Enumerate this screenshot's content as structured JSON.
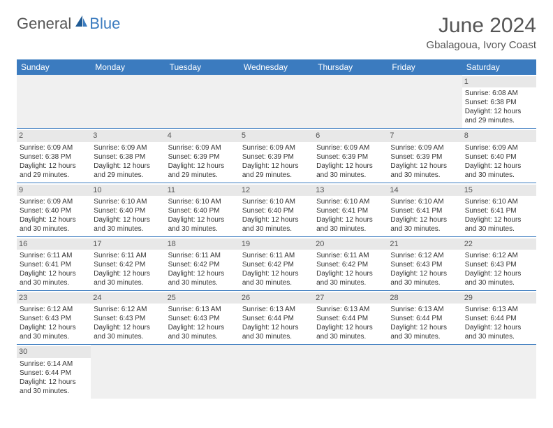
{
  "logo": {
    "general": "General",
    "blue": "Blue"
  },
  "title": "June 2024",
  "location": "Gbalagoua, Ivory Coast",
  "dayHeaders": [
    "Sunday",
    "Monday",
    "Tuesday",
    "Wednesday",
    "Thursday",
    "Friday",
    "Saturday"
  ],
  "colors": {
    "headerBg": "#3b7bbf",
    "headerText": "#ffffff",
    "dayNumBg": "#e8e8e8",
    "blankBg": "#f0f0f0",
    "text": "#333333",
    "border": "#3b7bbf"
  },
  "days": {
    "1": {
      "sunrise": "Sunrise: 6:08 AM",
      "sunset": "Sunset: 6:38 PM",
      "daylight": "Daylight: 12 hours and 29 minutes."
    },
    "2": {
      "sunrise": "Sunrise: 6:09 AM",
      "sunset": "Sunset: 6:38 PM",
      "daylight": "Daylight: 12 hours and 29 minutes."
    },
    "3": {
      "sunrise": "Sunrise: 6:09 AM",
      "sunset": "Sunset: 6:38 PM",
      "daylight": "Daylight: 12 hours and 29 minutes."
    },
    "4": {
      "sunrise": "Sunrise: 6:09 AM",
      "sunset": "Sunset: 6:39 PM",
      "daylight": "Daylight: 12 hours and 29 minutes."
    },
    "5": {
      "sunrise": "Sunrise: 6:09 AM",
      "sunset": "Sunset: 6:39 PM",
      "daylight": "Daylight: 12 hours and 29 minutes."
    },
    "6": {
      "sunrise": "Sunrise: 6:09 AM",
      "sunset": "Sunset: 6:39 PM",
      "daylight": "Daylight: 12 hours and 30 minutes."
    },
    "7": {
      "sunrise": "Sunrise: 6:09 AM",
      "sunset": "Sunset: 6:39 PM",
      "daylight": "Daylight: 12 hours and 30 minutes."
    },
    "8": {
      "sunrise": "Sunrise: 6:09 AM",
      "sunset": "Sunset: 6:40 PM",
      "daylight": "Daylight: 12 hours and 30 minutes."
    },
    "9": {
      "sunrise": "Sunrise: 6:09 AM",
      "sunset": "Sunset: 6:40 PM",
      "daylight": "Daylight: 12 hours and 30 minutes."
    },
    "10": {
      "sunrise": "Sunrise: 6:10 AM",
      "sunset": "Sunset: 6:40 PM",
      "daylight": "Daylight: 12 hours and 30 minutes."
    },
    "11": {
      "sunrise": "Sunrise: 6:10 AM",
      "sunset": "Sunset: 6:40 PM",
      "daylight": "Daylight: 12 hours and 30 minutes."
    },
    "12": {
      "sunrise": "Sunrise: 6:10 AM",
      "sunset": "Sunset: 6:40 PM",
      "daylight": "Daylight: 12 hours and 30 minutes."
    },
    "13": {
      "sunrise": "Sunrise: 6:10 AM",
      "sunset": "Sunset: 6:41 PM",
      "daylight": "Daylight: 12 hours and 30 minutes."
    },
    "14": {
      "sunrise": "Sunrise: 6:10 AM",
      "sunset": "Sunset: 6:41 PM",
      "daylight": "Daylight: 12 hours and 30 minutes."
    },
    "15": {
      "sunrise": "Sunrise: 6:10 AM",
      "sunset": "Sunset: 6:41 PM",
      "daylight": "Daylight: 12 hours and 30 minutes."
    },
    "16": {
      "sunrise": "Sunrise: 6:11 AM",
      "sunset": "Sunset: 6:41 PM",
      "daylight": "Daylight: 12 hours and 30 minutes."
    },
    "17": {
      "sunrise": "Sunrise: 6:11 AM",
      "sunset": "Sunset: 6:42 PM",
      "daylight": "Daylight: 12 hours and 30 minutes."
    },
    "18": {
      "sunrise": "Sunrise: 6:11 AM",
      "sunset": "Sunset: 6:42 PM",
      "daylight": "Daylight: 12 hours and 30 minutes."
    },
    "19": {
      "sunrise": "Sunrise: 6:11 AM",
      "sunset": "Sunset: 6:42 PM",
      "daylight": "Daylight: 12 hours and 30 minutes."
    },
    "20": {
      "sunrise": "Sunrise: 6:11 AM",
      "sunset": "Sunset: 6:42 PM",
      "daylight": "Daylight: 12 hours and 30 minutes."
    },
    "21": {
      "sunrise": "Sunrise: 6:12 AM",
      "sunset": "Sunset: 6:43 PM",
      "daylight": "Daylight: 12 hours and 30 minutes."
    },
    "22": {
      "sunrise": "Sunrise: 6:12 AM",
      "sunset": "Sunset: 6:43 PM",
      "daylight": "Daylight: 12 hours and 30 minutes."
    },
    "23": {
      "sunrise": "Sunrise: 6:12 AM",
      "sunset": "Sunset: 6:43 PM",
      "daylight": "Daylight: 12 hours and 30 minutes."
    },
    "24": {
      "sunrise": "Sunrise: 6:12 AM",
      "sunset": "Sunset: 6:43 PM",
      "daylight": "Daylight: 12 hours and 30 minutes."
    },
    "25": {
      "sunrise": "Sunrise: 6:13 AM",
      "sunset": "Sunset: 6:43 PM",
      "daylight": "Daylight: 12 hours and 30 minutes."
    },
    "26": {
      "sunrise": "Sunrise: 6:13 AM",
      "sunset": "Sunset: 6:44 PM",
      "daylight": "Daylight: 12 hours and 30 minutes."
    },
    "27": {
      "sunrise": "Sunrise: 6:13 AM",
      "sunset": "Sunset: 6:44 PM",
      "daylight": "Daylight: 12 hours and 30 minutes."
    },
    "28": {
      "sunrise": "Sunrise: 6:13 AM",
      "sunset": "Sunset: 6:44 PM",
      "daylight": "Daylight: 12 hours and 30 minutes."
    },
    "29": {
      "sunrise": "Sunrise: 6:13 AM",
      "sunset": "Sunset: 6:44 PM",
      "daylight": "Daylight: 12 hours and 30 minutes."
    },
    "30": {
      "sunrise": "Sunrise: 6:14 AM",
      "sunset": "Sunset: 6:44 PM",
      "daylight": "Daylight: 12 hours and 30 minutes."
    }
  },
  "grid": [
    [
      null,
      null,
      null,
      null,
      null,
      null,
      "1"
    ],
    [
      "2",
      "3",
      "4",
      "5",
      "6",
      "7",
      "8"
    ],
    [
      "9",
      "10",
      "11",
      "12",
      "13",
      "14",
      "15"
    ],
    [
      "16",
      "17",
      "18",
      "19",
      "20",
      "21",
      "22"
    ],
    [
      "23",
      "24",
      "25",
      "26",
      "27",
      "28",
      "29"
    ],
    [
      "30",
      null,
      null,
      null,
      null,
      null,
      null
    ]
  ]
}
